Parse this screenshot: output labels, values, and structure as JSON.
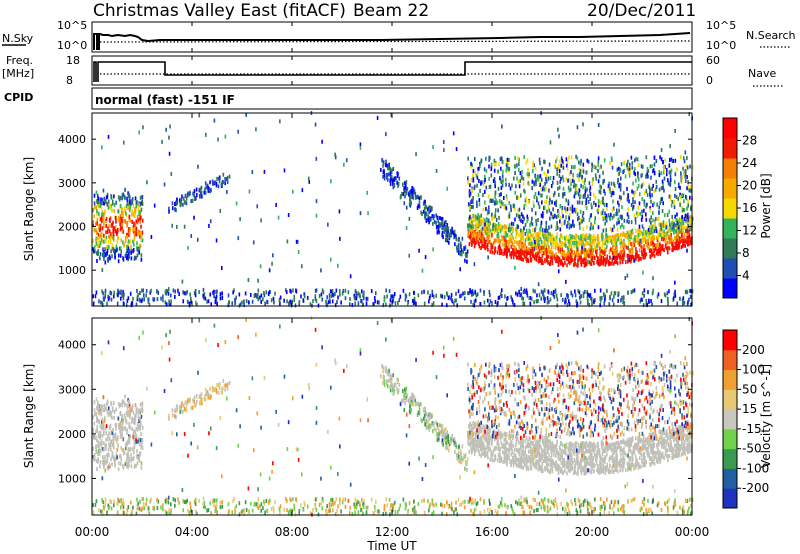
{
  "header": {
    "site": "Christmas Valley East (fitACF)",
    "beam": "Beam 22",
    "date": "20/Dec/2011"
  },
  "param_panels": {
    "nsky_label": "N.Sky",
    "nsearch_label": "N.Search",
    "freq_label_top": "Freq.",
    "freq_label_unit": "[MHz]",
    "nave_label": "Nave",
    "cpid_label": "CPID",
    "cpid_text": "normal (fast) -151 IF",
    "noise_ticks": [
      "10^5",
      "10^0"
    ],
    "freq_ticks": [
      "18",
      "8"
    ],
    "nave_ticks": [
      "60",
      "0"
    ]
  },
  "colors": {
    "power_scale": [
      "#0000ff",
      "#1f4fb0",
      "#2e7b55",
      "#32b45a",
      "#f5d800",
      "#f7a900",
      "#f47f00",
      "#f01b00",
      "#ff0000"
    ],
    "velocity_scale": [
      "#2030c0",
      "#2060a0",
      "#3a9a50",
      "#6ed24a",
      "#c8c8bc",
      "#e8c870",
      "#f0a030",
      "#f06020",
      "#ff0000"
    ],
    "ground_scatter": "#c0c0b8"
  },
  "chart_data": [
    {
      "type": "heatmap",
      "quantity": "Power",
      "ylabel": "Slant Range [km]",
      "ylim": [
        180,
        4600
      ],
      "yticks": [
        1000,
        2000,
        3000,
        4000
      ],
      "xlim": [
        0,
        24
      ],
      "colorbar_label": "Power [dB]",
      "colorbar_ticks": [
        "4",
        "8",
        "12",
        "16",
        "20",
        "24",
        "28"
      ]
    },
    {
      "type": "heatmap",
      "quantity": "Velocity",
      "ylabel": "Slant Range [km]",
      "ylim": [
        180,
        4600
      ],
      "yticks": [
        1000,
        2000,
        3000,
        4000
      ],
      "xlim": [
        0,
        24
      ],
      "xlabel": "Time UT",
      "xticks": [
        "00:00",
        "04:00",
        "08:00",
        "12:00",
        "16:00",
        "20:00",
        "00:00"
      ],
      "colorbar_label": "Velocity [m s^-1]",
      "colorbar_ticks": [
        "200",
        "100",
        "50",
        "15",
        "-15",
        "-50",
        "-100",
        "-200"
      ]
    }
  ]
}
